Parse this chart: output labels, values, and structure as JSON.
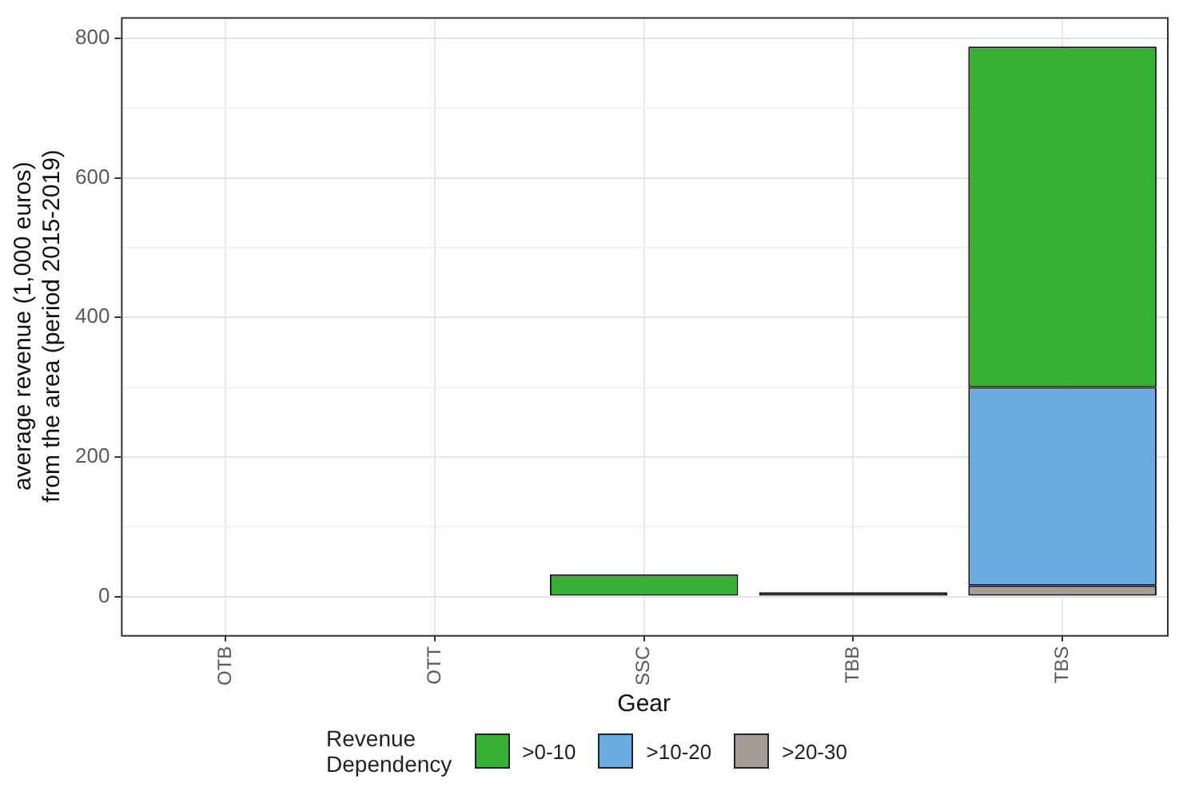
{
  "chart_data": {
    "type": "bar",
    "xlabel": "Gear",
    "ylabel": "average revenue (1,000 euros)\nfrom the area (period 2015-2019)",
    "legend_title": "Revenue\nDependency",
    "categories": [
      "OTB",
      "OTT",
      "SSC",
      "TBB",
      "TBS"
    ],
    "stacked": true,
    "series": [
      {
        "name": ">20-30",
        "color": "#a39c97",
        "values": [
          0,
          0,
          0,
          0,
          16
        ]
      },
      {
        "name": ">10-20",
        "color": "#6aace2",
        "values": [
          0,
          0,
          0,
          0,
          284
        ]
      },
      {
        "name": ">0-10",
        "color": "#35b035",
        "values": [
          0,
          0,
          32,
          6,
          488
        ]
      }
    ],
    "ylim": [
      -55,
      830
    ],
    "yticks": [
      0,
      {
        "value": 100,
        "label": null
      },
      200,
      {
        "value": 300,
        "label": null
      },
      400,
      {
        "value": 500,
        "label": null
      },
      600,
      {
        "value": 700,
        "label": null
      },
      800
    ],
    "grid": true,
    "legend": "bottom"
  }
}
